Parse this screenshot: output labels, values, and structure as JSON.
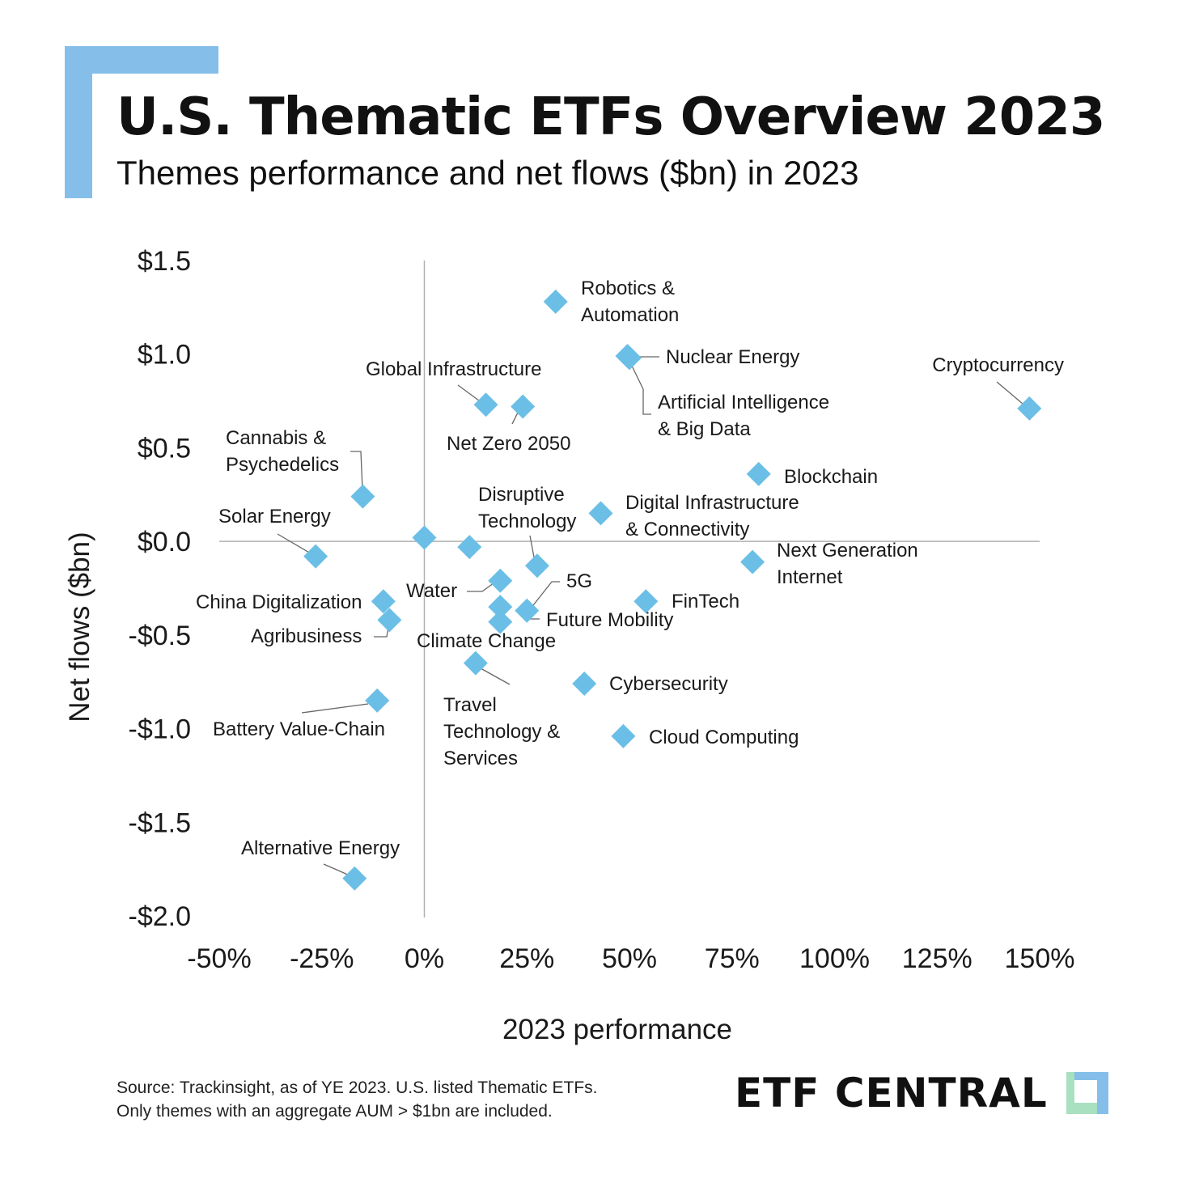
{
  "header": {
    "title": "U.S. Thematic ETFs Overview 2023",
    "subtitle": "Themes performance and net flows ($bn) in 2023"
  },
  "footer": {
    "source_line1": "Source: Trackinsight, as of YE 2023. U.S. listed Thematic ETFs.",
    "source_line2": "Only themes with an aggregate AUM > $1bn are included.",
    "brand": "ETF CENTRAL"
  },
  "colors": {
    "accent": "#85bfe9",
    "marker": "#6bbfe6",
    "axis": "#b0b0b0",
    "leader": "#666666",
    "logo_green": "#a8e0c0",
    "logo_blue": "#85bfe9"
  },
  "chart_data": {
    "type": "scatter",
    "title": "U.S. Thematic ETFs Overview 2023",
    "subtitle": "Themes performance and net flows ($bn) in 2023",
    "xlabel": "2023 performance",
    "ylabel": "Net flows ($bn)",
    "xlim": [
      -50,
      150
    ],
    "ylim": [
      -2.0,
      1.5
    ],
    "x_ticks": [
      -50,
      -25,
      0,
      25,
      50,
      75,
      100,
      125,
      150
    ],
    "x_tick_labels": [
      "-50%",
      "-25%",
      "0%",
      "25%",
      "50%",
      "75%",
      "100%",
      "125%",
      "150%"
    ],
    "y_ticks": [
      1.5,
      1.0,
      0.5,
      0.0,
      -0.5,
      -1.0,
      -1.5,
      -2.0
    ],
    "y_tick_labels": [
      "$1.5",
      "$1.0",
      "$0.5",
      "$0.0",
      "-$0.5",
      "-$1.0",
      "-$1.5",
      "-$2.0"
    ],
    "grid": false,
    "marker": "diamond",
    "points": [
      {
        "x": 32,
        "y": 1.28,
        "label": [
          "Robotics &",
          "Automation"
        ]
      },
      {
        "x": 49.5,
        "y": 0.99,
        "label": [
          "Nuclear Energy"
        ]
      },
      {
        "x": 50,
        "y": 0.98,
        "label": [
          "Artificial Intelligence",
          "& Big Data"
        ]
      },
      {
        "x": 147.5,
        "y": 0.71,
        "label": [
          "Cryptocurrency"
        ]
      },
      {
        "x": 15,
        "y": 0.73,
        "label": [
          "Global Infrastructure"
        ]
      },
      {
        "x": 24,
        "y": 0.72,
        "label": [
          "Net Zero 2050"
        ]
      },
      {
        "x": -15,
        "y": 0.24,
        "label": [
          "Cannabis &",
          "Psychedelics"
        ]
      },
      {
        "x": 81.5,
        "y": 0.36,
        "label": [
          "Blockchain"
        ]
      },
      {
        "x": 43,
        "y": 0.15,
        "label": [
          "Digital Infrastructure",
          "& Connectivity"
        ]
      },
      {
        "x": 0,
        "y": 0.02,
        "label": []
      },
      {
        "x": 11,
        "y": -0.03,
        "label": []
      },
      {
        "x": 27.5,
        "y": -0.13,
        "label": [
          "Disruptive",
          "Technology"
        ]
      },
      {
        "x": -26.5,
        "y": -0.08,
        "label": [
          "Solar Energy"
        ]
      },
      {
        "x": 80,
        "y": -0.11,
        "label": [
          "Next Generation",
          "Internet"
        ]
      },
      {
        "x": 18.5,
        "y": -0.21,
        "label": [
          "Water"
        ]
      },
      {
        "x": 18.5,
        "y": -0.35,
        "label": []
      },
      {
        "x": 18.5,
        "y": -0.43,
        "label": []
      },
      {
        "x": 25,
        "y": -0.37,
        "label": [
          "5G"
        ]
      },
      {
        "x": 25,
        "y": -0.37,
        "label": [
          "Future Mobility"
        ]
      },
      {
        "x": 54,
        "y": -0.32,
        "label": [
          "FinTech"
        ]
      },
      {
        "x": -10,
        "y": -0.32,
        "label": [
          "China Digitalization"
        ]
      },
      {
        "x": -8.5,
        "y": -0.42,
        "label": [
          "Agribusiness"
        ]
      },
      {
        "x": 12.5,
        "y": -0.65,
        "label": [
          "Climate Change"
        ]
      },
      {
        "x": 12.5,
        "y": -0.65,
        "label": [
          "Travel",
          "Technology &",
          "Services"
        ]
      },
      {
        "x": 39,
        "y": -0.76,
        "label": [
          "Cybersecurity"
        ]
      },
      {
        "x": -11.5,
        "y": -0.85,
        "label": [
          "Battery Value-Chain"
        ]
      },
      {
        "x": 48.5,
        "y": -1.04,
        "label": [
          "Cloud Computing"
        ]
      },
      {
        "x": -17,
        "y": -1.8,
        "label": [
          "Alternative Energy"
        ]
      }
    ]
  }
}
